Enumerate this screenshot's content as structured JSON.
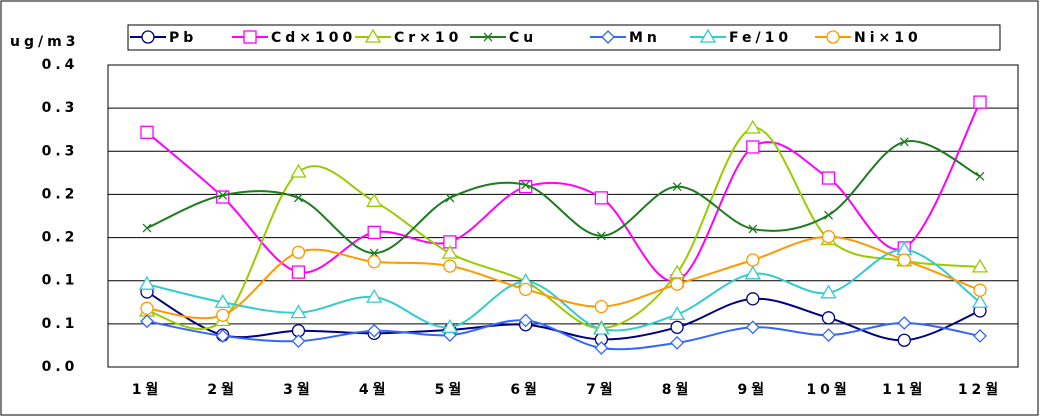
{
  "chart_data": {
    "type": "line",
    "y_label": "ug/m3",
    "categories": [
      "1월",
      "2월",
      "3월",
      "4월",
      "5월",
      "6월",
      "7월",
      "8월",
      "9월",
      "10월",
      "11월",
      "12월"
    ],
    "series": [
      {
        "name": "Pb",
        "color": "#000080",
        "marker": "circle",
        "values": [
          0.087,
          0.037,
          0.042,
          0.039,
          0.043,
          0.049,
          0.032,
          0.046,
          0.079,
          0.057,
          0.031,
          0.065
        ]
      },
      {
        "name": "Cd×100",
        "color": "#ff00ff",
        "marker": "square",
        "values": [
          0.272,
          0.197,
          0.11,
          0.156,
          0.145,
          0.209,
          0.196,
          0.1,
          0.255,
          0.219,
          0.138,
          0.307
        ]
      },
      {
        "name": "Cr×10",
        "color": "#99cc00",
        "marker": "triangle",
        "values": [
          0.065,
          0.054,
          0.226,
          0.192,
          0.132,
          0.099,
          0.045,
          0.109,
          0.277,
          0.148,
          0.123,
          0.116
        ]
      },
      {
        "name": "Cu",
        "color": "#1e7b1e",
        "marker": "x",
        "values": [
          0.161,
          0.199,
          0.196,
          0.132,
          0.196,
          0.211,
          0.152,
          0.209,
          0.16,
          0.176,
          0.261,
          0.221
        ]
      },
      {
        "name": "Mn",
        "color": "#3366ff",
        "marker": "diamond",
        "values": [
          0.053,
          0.036,
          0.03,
          0.042,
          0.037,
          0.054,
          0.022,
          0.028,
          0.046,
          0.037,
          0.051,
          0.036
        ]
      },
      {
        "name": "Fe/10",
        "color": "#33cccc",
        "marker": "triangle",
        "values": [
          0.096,
          0.075,
          0.063,
          0.081,
          0.046,
          0.099,
          0.044,
          0.061,
          0.108,
          0.086,
          0.136,
          0.075
        ]
      },
      {
        "name": "Ni×10",
        "color": "#ff9900",
        "marker": "circle",
        "values": [
          0.068,
          0.06,
          0.133,
          0.122,
          0.117,
          0.09,
          0.07,
          0.096,
          0.124,
          0.151,
          0.124,
          0.089
        ]
      }
    ],
    "ylim": [
      0,
      0.35
    ],
    "yticks": [
      {
        "value": 0,
        "label": "0.0"
      },
      {
        "value": 0.05,
        "label": "0.1"
      },
      {
        "value": 0.1,
        "label": "0.1"
      },
      {
        "value": 0.15,
        "label": "0.2"
      },
      {
        "value": 0.2,
        "label": "0.2"
      },
      {
        "value": 0.25,
        "label": "0.3"
      },
      {
        "value": 0.3,
        "label": "0.3"
      },
      {
        "value": 0.35,
        "label": "0.4"
      }
    ],
    "grid": true,
    "smooth": true,
    "legend": "top"
  }
}
